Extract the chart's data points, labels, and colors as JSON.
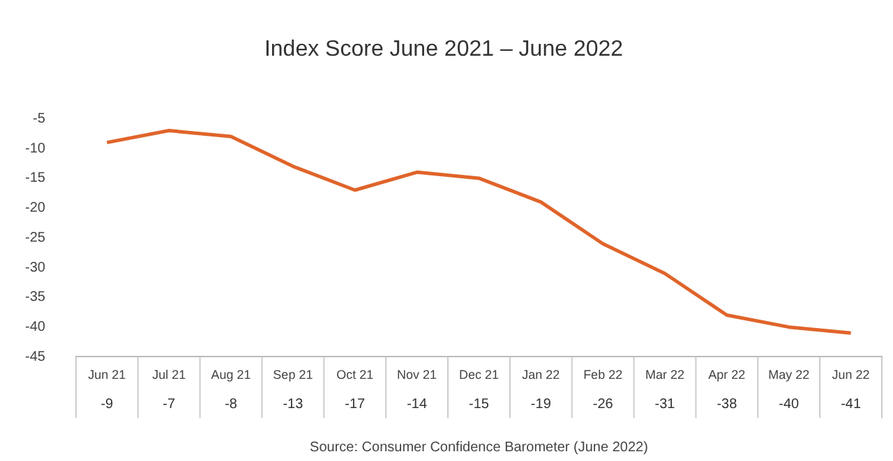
{
  "chart_data": {
    "type": "line",
    "title": "Index Score June 2021 – June 2022",
    "categories": [
      "Jun 21",
      "Jul 21",
      "Aug 21",
      "Sep 21",
      "Oct 21",
      "Nov 21",
      "Dec 21",
      "Jan 22",
      "Feb 22",
      "Mar 22",
      "Apr 22",
      "May 22",
      "Jun 22"
    ],
    "series": [
      {
        "color": "#e0642a",
        "values": [
          -9,
          -7,
          -8,
          -13,
          -17,
          -14,
          -15,
          -19,
          -26,
          -31,
          -38,
          -40,
          -41
        ]
      }
    ],
    "ylim": [
      -45,
      -5
    ],
    "yticks": [
      -45,
      -40,
      -35,
      -30,
      -25,
      -20,
      -15,
      -10,
      -5
    ],
    "grid": false,
    "legend": false,
    "marker": "none",
    "data_labels": true,
    "annotations": [
      "Source: Consumer Confidence Barometer (June 2022)"
    ]
  }
}
